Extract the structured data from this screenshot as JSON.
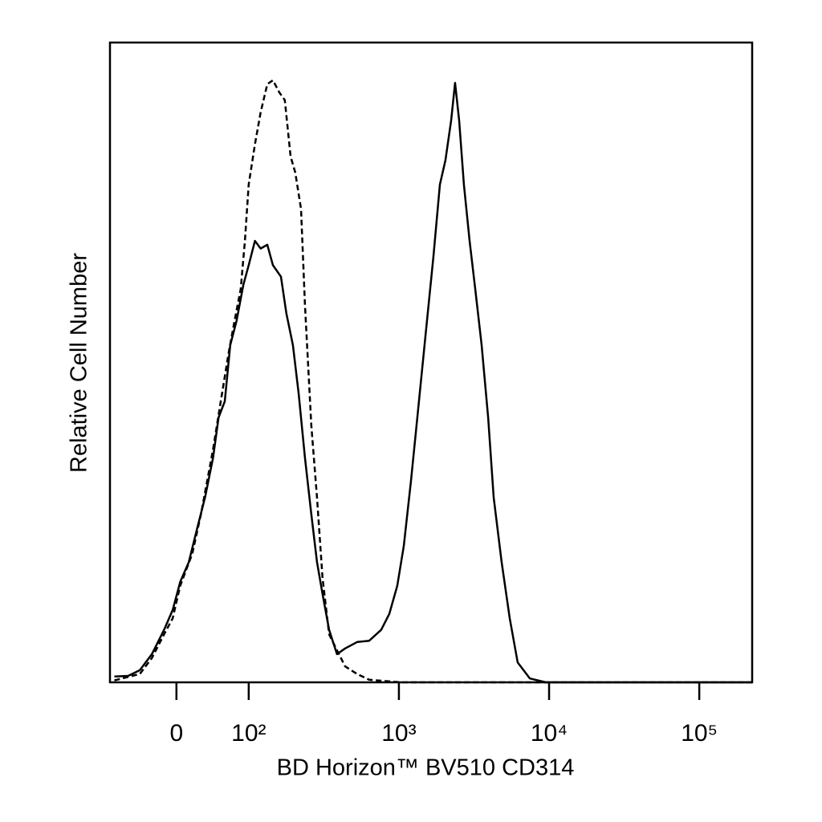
{
  "chart_data": {
    "type": "histogram-overlay",
    "x_label": "BD Horizon™ BV510 CD314",
    "y_label": "Relative Cell Number",
    "xscale": "biexponential",
    "xlim": [
      -85,
      225000
    ],
    "ylim": [
      0,
      100
    ],
    "xticks": [
      0,
      {
        "value": 100,
        "label": "10²"
      },
      {
        "value": 1000,
        "label": "10³"
      },
      {
        "value": 10000,
        "label": "10⁴"
      },
      {
        "value": 100000,
        "label": "10⁵"
      }
    ],
    "series": [
      {
        "color": "#000000",
        "style": "solid",
        "x": [
          -75,
          -50,
          -34,
          -21,
          -10,
          -3,
          3,
          10,
          17,
          25,
          34,
          41,
          50,
          59,
          71,
          86,
          100,
          110,
          120,
          133,
          145,
          164,
          178,
          197,
          215,
          237,
          261,
          285,
          310,
          343,
          387,
          438,
          527,
          634,
          763,
          863,
          975,
          1077,
          1203,
          1327,
          1500,
          1698,
          1874,
          2042,
          2227,
          2366,
          2518,
          2710,
          2955,
          3221,
          3556,
          3926,
          4278,
          4833,
          5470,
          6180,
          7447,
          9525,
          225000
        ],
        "values": [
          0.9,
          1.0,
          1.9,
          4.4,
          8.2,
          11.3,
          15.7,
          18.8,
          23.8,
          28.9,
          35.1,
          41.4,
          43.9,
          52.7,
          56.5,
          62.1,
          65.2,
          69.0,
          67.8,
          68.4,
          65.2,
          63.4,
          57.7,
          52.7,
          45.2,
          35.1,
          26.3,
          18.8,
          13.8,
          8.2,
          4.4,
          5.3,
          6.3,
          6.5,
          8.2,
          10.7,
          15.1,
          21.3,
          31.4,
          41.4,
          54.0,
          66.5,
          77.8,
          81.6,
          87.8,
          93.7,
          87.8,
          77.8,
          69.0,
          61.5,
          52.7,
          41.4,
          28.9,
          18.8,
          10.0,
          3.1,
          0.6,
          0,
          0
        ]
      },
      {
        "color": "#000000",
        "style": "dashed",
        "x": [
          -75,
          -34,
          -21,
          -10,
          -3,
          3,
          13,
          21,
          34,
          44,
          56,
          67,
          80,
          90,
          100,
          110,
          120,
          133,
          145,
          160,
          174,
          190,
          204,
          223,
          237,
          261,
          285,
          310,
          343,
          387,
          438,
          527,
          634,
          1038,
          225000
        ],
        "values": [
          0.3,
          1.3,
          3.8,
          7.5,
          10.0,
          15.1,
          20.1,
          26.3,
          36.4,
          43.9,
          51.4,
          56.5,
          61.5,
          69.0,
          77.8,
          84.1,
          89.1,
          93.5,
          94.1,
          92.2,
          91.0,
          82.2,
          79.7,
          74.0,
          59.0,
          40.2,
          28.9,
          16.3,
          7.5,
          5.0,
          2.5,
          1.3,
          0.4,
          0,
          0
        ]
      }
    ]
  }
}
